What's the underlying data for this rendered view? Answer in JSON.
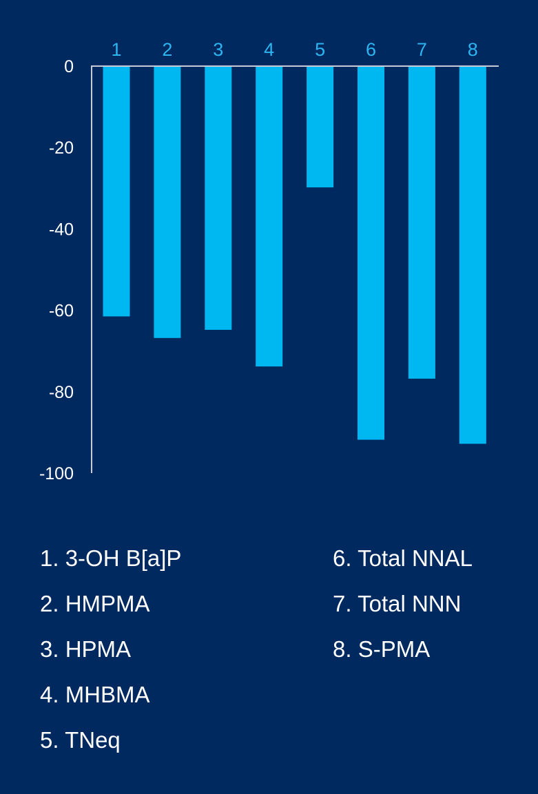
{
  "colors": {
    "background": "#002960",
    "bar": "#00B8F1",
    "axis": "#C7CCD6",
    "tick_text": "#FFFFFF",
    "category_text": "#2DB5F0",
    "legend_text": "#FFFFFF"
  },
  "chart_data": {
    "type": "bar",
    "categories": [
      "1",
      "2",
      "3",
      "4",
      "5",
      "6",
      "7",
      "8"
    ],
    "values": [
      -61.5,
      -66.8,
      -64.8,
      -73.8,
      -29.8,
      -91.8,
      -76.8,
      -92.8
    ],
    "title": "",
    "xlabel": "",
    "ylabel": "",
    "ylim": [
      -100,
      0
    ],
    "yticks": [
      0,
      -20,
      -40,
      -60,
      -80,
      -100
    ],
    "ytick_labels": [
      "0",
      "-20",
      "-40",
      "-60",
      "-80",
      "-100"
    ],
    "x_axis_position": "top",
    "grid": false,
    "legend_placement": "bottom, two columns"
  },
  "legend": {
    "col1": [
      "1. 3-OH B[a]P",
      "2. HMPMA",
      "3. HPMA",
      "4. MHBMA",
      "5. TNeq"
    ],
    "col2": [
      "6. Total NNAL",
      "7. Total NNN",
      "8. S-PMA"
    ]
  }
}
